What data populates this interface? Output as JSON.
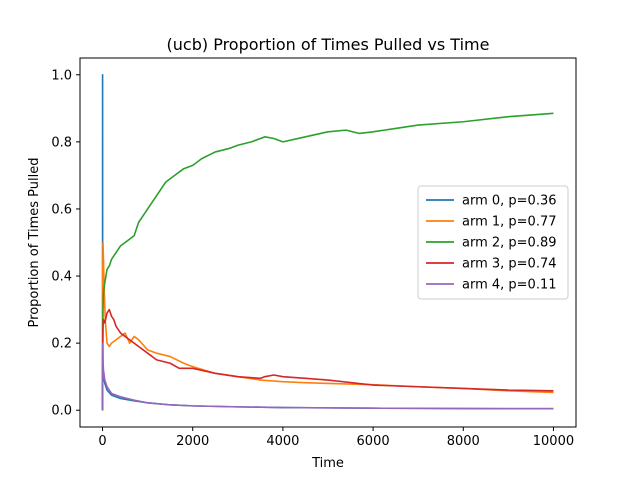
{
  "chart_data": {
    "type": "line",
    "title": "(ucb) Proportion of Times Pulled vs Time",
    "xlabel": "Time",
    "ylabel": "Proportion of Times Pulled",
    "xlim": [
      -500,
      10500
    ],
    "ylim": [
      -0.05,
      1.05
    ],
    "xticks": [
      0,
      2000,
      4000,
      6000,
      8000,
      10000
    ],
    "xtick_labels": [
      "0",
      "2000",
      "4000",
      "6000",
      "8000",
      "10000"
    ],
    "yticks": [
      0.0,
      0.2,
      0.4,
      0.6,
      0.8,
      1.0
    ],
    "ytick_labels": [
      "0.0",
      "0.2",
      "0.4",
      "0.6",
      "0.8",
      "1.0"
    ],
    "grid": false,
    "legend_position": "center-right",
    "series": [
      {
        "name": "arm 0, p=0.36",
        "color": "#1f77b4",
        "x": [
          0,
          1,
          2,
          3,
          5,
          10,
          20,
          50,
          100,
          200,
          400,
          700,
          1000,
          1500,
          2000,
          3000,
          4000,
          5000,
          6000,
          7000,
          8000,
          9000,
          10000
        ],
        "y": [
          0.0,
          1.0,
          0.5,
          0.333,
          0.2,
          0.1,
          0.1,
          0.08,
          0.06,
          0.045,
          0.035,
          0.028,
          0.022,
          0.016,
          0.013,
          0.01,
          0.008,
          0.007,
          0.006,
          0.0055,
          0.005,
          0.0047,
          0.0045
        ]
      },
      {
        "name": "arm 1, p=0.77",
        "color": "#ff7f0e",
        "x": [
          0,
          5,
          10,
          20,
          40,
          60,
          100,
          150,
          200,
          300,
          400,
          500,
          600,
          700,
          800,
          1000,
          1200,
          1500,
          1800,
          2000,
          2500,
          3000,
          3500,
          4000,
          4500,
          5000,
          5500,
          6000,
          7000,
          8000,
          9000,
          10000
        ],
        "y": [
          0.0,
          0.4,
          0.5,
          0.45,
          0.35,
          0.27,
          0.2,
          0.19,
          0.2,
          0.21,
          0.22,
          0.23,
          0.2,
          0.22,
          0.21,
          0.18,
          0.17,
          0.16,
          0.14,
          0.13,
          0.11,
          0.1,
          0.09,
          0.085,
          0.082,
          0.08,
          0.078,
          0.076,
          0.07,
          0.065,
          0.058,
          0.053
        ]
      },
      {
        "name": "arm 2, p=0.89",
        "color": "#2ca02c",
        "x": [
          0,
          5,
          10,
          20,
          50,
          100,
          150,
          200,
          300,
          400,
          500,
          600,
          700,
          800,
          900,
          1000,
          1200,
          1400,
          1600,
          1800,
          2000,
          2200,
          2500,
          2800,
          3000,
          3300,
          3600,
          3800,
          4000,
          4500,
          5000,
          5400,
          5700,
          6000,
          6500,
          7000,
          8000,
          9000,
          10000
        ],
        "y": [
          0.0,
          0.2,
          0.3,
          0.35,
          0.38,
          0.42,
          0.43,
          0.45,
          0.47,
          0.49,
          0.5,
          0.51,
          0.52,
          0.56,
          0.58,
          0.6,
          0.64,
          0.68,
          0.7,
          0.72,
          0.73,
          0.75,
          0.77,
          0.78,
          0.79,
          0.8,
          0.815,
          0.81,
          0.8,
          0.815,
          0.83,
          0.835,
          0.825,
          0.83,
          0.84,
          0.85,
          0.86,
          0.875,
          0.885
        ]
      },
      {
        "name": "arm 3, p=0.74",
        "color": "#d62728",
        "x": [
          0,
          5,
          10,
          20,
          50,
          100,
          150,
          200,
          250,
          300,
          400,
          500,
          600,
          800,
          1000,
          1200,
          1500,
          1700,
          2000,
          2500,
          3000,
          3500,
          3600,
          3800,
          4000,
          4500,
          5000,
          6000,
          7000,
          8000,
          9000,
          10000
        ],
        "y": [
          0.0,
          0.2,
          0.25,
          0.27,
          0.26,
          0.29,
          0.3,
          0.28,
          0.27,
          0.25,
          0.23,
          0.22,
          0.21,
          0.19,
          0.17,
          0.15,
          0.14,
          0.125,
          0.125,
          0.11,
          0.1,
          0.095,
          0.1,
          0.105,
          0.1,
          0.095,
          0.09,
          0.075,
          0.07,
          0.065,
          0.06,
          0.058
        ]
      },
      {
        "name": "arm 4, p=0.11",
        "color": "#9467bd",
        "x": [
          0,
          5,
          10,
          20,
          50,
          100,
          200,
          400,
          700,
          1000,
          1500,
          2000,
          3000,
          4000,
          5000,
          6000,
          7000,
          8000,
          9000,
          10000
        ],
        "y": [
          0.0,
          0.2,
          0.15,
          0.12,
          0.09,
          0.07,
          0.05,
          0.04,
          0.03,
          0.022,
          0.016,
          0.013,
          0.01,
          0.008,
          0.007,
          0.006,
          0.0055,
          0.005,
          0.0047,
          0.0045
        ]
      }
    ]
  }
}
